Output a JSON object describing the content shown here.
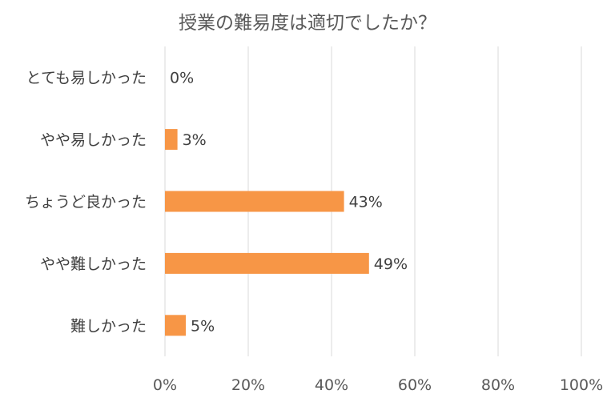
{
  "chart_data": {
    "type": "bar",
    "orientation": "horizontal",
    "title": "授業の難易度は適切でしたか？",
    "categories": [
      "とても易しかった",
      "やや易しかった",
      "ちょうど良かった",
      "やや難しかった",
      "難しかった"
    ],
    "values": [
      0,
      3,
      43,
      49,
      5
    ],
    "value_labels": [
      "0%",
      "3%",
      "43%",
      "49%",
      "5%"
    ],
    "xlim": [
      0,
      100
    ],
    "x_ticks": [
      "0%",
      "20%",
      "40%",
      "60%",
      "80%",
      "100%"
    ],
    "grid": true,
    "bar_color": "#f79646"
  }
}
